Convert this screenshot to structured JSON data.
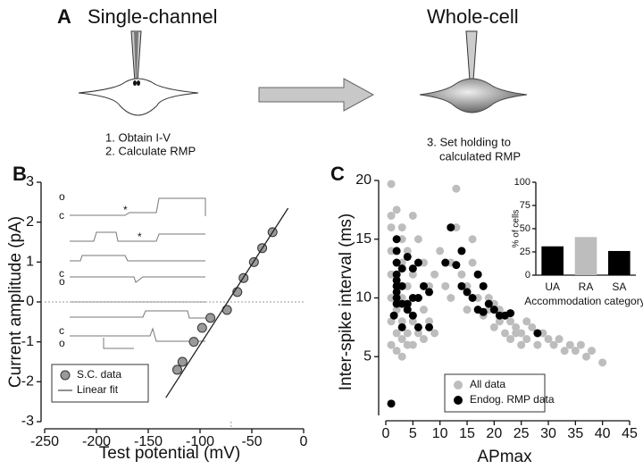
{
  "panel_a": {
    "label": "A",
    "left_title": "Single-channel",
    "right_title": "Whole-cell",
    "steps_left": [
      "1. Obtain I-V",
      "2. Calculate RMP"
    ],
    "steps_right": [
      "3. Set holding to",
      "calculated RMP"
    ]
  },
  "chart_data": [
    {
      "type": "scatter",
      "panel_label": "B",
      "x_label": "Test potential (mV)",
      "y_label": "Current amplitude (pA)",
      "xlim": [
        -250,
        0
      ],
      "xticks": [
        -250,
        -200,
        -150,
        -100,
        -50,
        0
      ],
      "ylim": [
        -3,
        3
      ],
      "yticks": [
        -3,
        -2,
        -1,
        0,
        1,
        2,
        3
      ],
      "reference_x": -70,
      "reference_y": 0,
      "series": [
        {
          "name": "S.C. data",
          "color": "#9a9a9a",
          "style": "marker",
          "x": [
            -122,
            -117,
            -106,
            -98,
            -90,
            -74,
            -64,
            -58,
            -48,
            -40,
            -30
          ],
          "values": [
            -1.7,
            -1.5,
            -1.0,
            -0.65,
            -0.4,
            -0.2,
            0.25,
            0.6,
            1.0,
            1.35,
            1.75
          ]
        },
        {
          "name": "Linear fit",
          "color": "#222222",
          "style": "line",
          "x": [
            -133,
            -15
          ],
          "values": [
            -2.4,
            2.35
          ]
        }
      ],
      "trace_labels": [
        "o",
        "c",
        "c",
        "o",
        "c",
        "o"
      ],
      "annotations": [
        "*",
        "*"
      ]
    },
    {
      "type": "scatter",
      "panel_label": "C",
      "x_label": "APmax",
      "y_label": "Inter-spike interval (ms)",
      "xlim": [
        0,
        45
      ],
      "xticks": [
        0,
        5,
        10,
        15,
        20,
        25,
        30,
        35,
        40,
        45
      ],
      "ylim": [
        0,
        20
      ],
      "yticks": [
        5,
        10,
        15,
        20
      ],
      "series": [
        {
          "name": "All data",
          "color": "#bdbdbd",
          "style": "marker",
          "x": [
            1,
            1,
            1,
            1,
            1,
            1,
            1,
            1,
            2,
            2,
            2,
            2,
            2,
            2,
            2,
            3,
            3,
            3,
            3,
            3,
            3,
            3,
            4,
            4,
            4,
            4,
            4,
            5,
            5,
            5,
            5,
            6,
            6,
            6,
            7,
            7,
            7,
            8,
            8,
            9,
            9,
            10,
            11,
            12,
            12,
            13,
            13,
            14,
            14,
            15,
            15,
            16,
            16,
            17,
            17,
            18,
            18,
            19,
            19,
            20,
            20,
            21,
            21,
            22,
            22,
            23,
            23,
            24,
            24,
            25,
            25,
            26,
            26,
            27,
            28,
            29,
            30,
            31,
            32,
            33,
            34,
            35,
            36,
            37,
            38,
            40
          ],
          "values": [
            6,
            8,
            10,
            12,
            14,
            16,
            17,
            19.7,
            5.5,
            7,
            9,
            11,
            13,
            15,
            17.5,
            6.5,
            5,
            8,
            10,
            13,
            15,
            16,
            7,
            6,
            9,
            11,
            14,
            17,
            6,
            8,
            12,
            15,
            7,
            10,
            13,
            6.5,
            9,
            11,
            8,
            12,
            7,
            14,
            11,
            13,
            10,
            16,
            19.3,
            14,
            12,
            11,
            9,
            15,
            13,
            10,
            12,
            8.5,
            11,
            9,
            10,
            7.5,
            9.5,
            8,
            9,
            7,
            8.5,
            6.5,
            8,
            7,
            7.5,
            6,
            7,
            8,
            6.5,
            7.5,
            6,
            7,
            6.5,
            6,
            6.5,
            5.5,
            6,
            5.5,
            6,
            5,
            5.5,
            4.5
          ]
        },
        {
          "name": "Endog. RMP data",
          "color": "#000000",
          "style": "marker",
          "x": [
            1,
            2,
            2,
            2,
            2,
            2,
            2,
            2,
            2,
            2,
            1.5,
            3,
            3,
            3,
            3,
            4,
            4,
            4,
            5,
            5,
            5,
            6,
            6,
            6,
            7,
            8,
            8,
            11,
            12,
            13,
            14,
            14,
            15,
            16,
            17,
            17,
            18,
            18,
            19,
            20,
            21,
            22,
            23,
            28
          ],
          "values": [
            1,
            15,
            14,
            13,
            12,
            11.5,
            11,
            10.5,
            10,
            9.5,
            8.5,
            12.5,
            11,
            9.5,
            7.5,
            13.5,
            9.5,
            9,
            12.5,
            10,
            8.5,
            13,
            10,
            7.5,
            11,
            10.5,
            7.5,
            13,
            16,
            12.8,
            14,
            11,
            10.5,
            10,
            12,
            9,
            11,
            8.8,
            9.5,
            9,
            8.5,
            8.5,
            8.7,
            7
          ]
        }
      ]
    },
    {
      "type": "bar",
      "x_label": "Accommodation category",
      "y_label": "% of cells",
      "categories": [
        "UA",
        "RA",
        "SA"
      ],
      "values": [
        31,
        41,
        26
      ],
      "colors": [
        "#000000",
        "#bdbdbd",
        "#000000"
      ],
      "ylim": [
        0,
        100
      ],
      "yticks": [
        0,
        25,
        50,
        75,
        100
      ]
    }
  ]
}
